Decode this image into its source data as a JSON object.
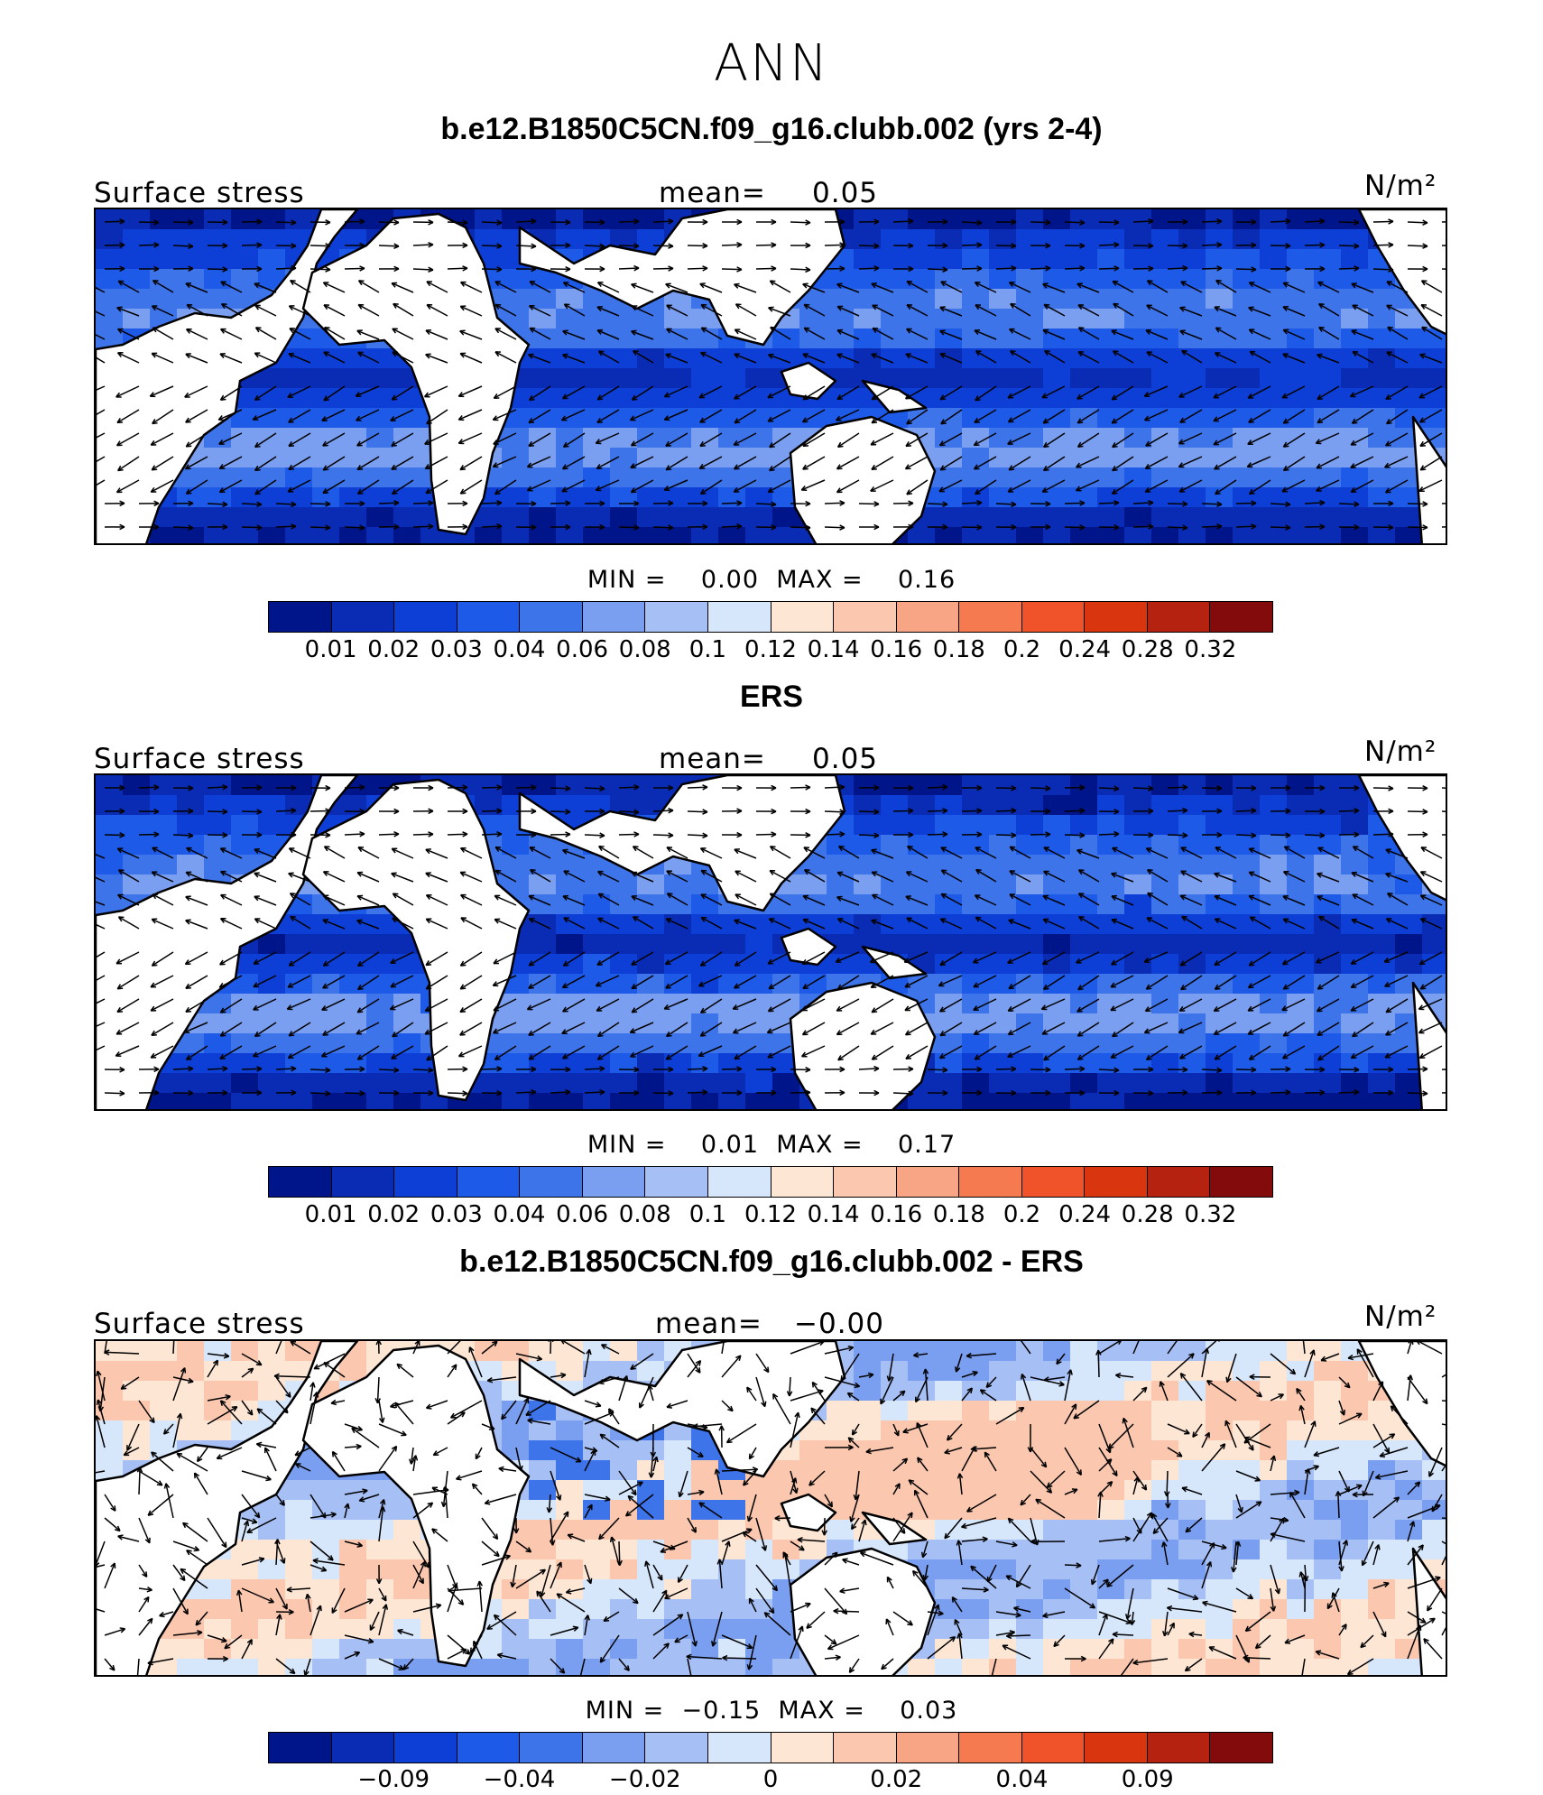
{
  "title": "ANN",
  "panels": [
    {
      "title": "b.e12.B1850C5CN.f09_g16.clubb.002 (yrs 2-4)",
      "variable": "Surface stress",
      "mean_label": "mean=",
      "mean_value": "0.05",
      "units": "N/m²",
      "min_label": "MIN =",
      "min_value": "0.00",
      "max_label": "MAX =",
      "max_value": "0.16",
      "colorbar_ticks": [
        "0.01",
        "0.02",
        "0.03",
        "0.04",
        "0.06",
        "0.08",
        "0.1",
        "0.12",
        "0.14",
        "0.16",
        "0.18",
        "0.2",
        "0.24",
        "0.28",
        "0.32"
      ],
      "palette": "abs"
    },
    {
      "title": "ERS",
      "variable": "Surface stress",
      "mean_label": "mean=",
      "mean_value": "0.05",
      "units": "N/m²",
      "min_label": "MIN =",
      "min_value": "0.01",
      "max_label": "MAX =",
      "max_value": "0.17",
      "colorbar_ticks": [
        "0.01",
        "0.02",
        "0.03",
        "0.04",
        "0.06",
        "0.08",
        "0.1",
        "0.12",
        "0.14",
        "0.16",
        "0.18",
        "0.2",
        "0.24",
        "0.28",
        "0.32"
      ],
      "palette": "abs"
    },
    {
      "title": "b.e12.B1850C5CN.f09_g16.clubb.002 - ERS",
      "variable": "Surface stress",
      "mean_label": "mean=",
      "mean_value": "−0.00",
      "units": "N/m²",
      "min_label": "MIN =",
      "min_value": "−0.15",
      "max_label": "MAX =",
      "max_value": "0.03",
      "colorbar_ticks": [
        "−0.09",
        "−0.04",
        "−0.02",
        "0",
        "0.02",
        "0.04",
        "0.09"
      ],
      "palette": "diff"
    }
  ],
  "colors": {
    "colorbar": [
      "#00158a",
      "#0a2cb5",
      "#0d3fd6",
      "#1d5ae8",
      "#3d74ea",
      "#7a9ff0",
      "#a6c0f6",
      "#d6e6fb",
      "#fde6d4",
      "#fbc7ae",
      "#f8a585",
      "#f57a50",
      "#f0532a",
      "#d9350f",
      "#b52210",
      "#840b0b"
    ],
    "land": "#ffffff",
    "coast": "#000000",
    "arrow": "#000000"
  },
  "chart_data": [
    {
      "type": "heatmap",
      "title": "b.e12.B1850C5CN.f09_g16.clubb.002 (yrs 2-4)",
      "field": "Surface stress",
      "units": "N/m²",
      "mean": 0.05,
      "min": 0.0,
      "max": 0.16,
      "contour_levels": [
        0.01,
        0.02,
        0.03,
        0.04,
        0.06,
        0.08,
        0.1,
        0.12,
        0.14,
        0.16,
        0.18,
        0.2,
        0.24,
        0.28,
        0.32
      ],
      "overlay": "wind stress vectors"
    },
    {
      "type": "heatmap",
      "title": "ERS",
      "field": "Surface stress",
      "units": "N/m²",
      "mean": 0.05,
      "min": 0.01,
      "max": 0.17,
      "contour_levels": [
        0.01,
        0.02,
        0.03,
        0.04,
        0.06,
        0.08,
        0.1,
        0.12,
        0.14,
        0.16,
        0.18,
        0.2,
        0.24,
        0.28,
        0.32
      ],
      "overlay": "wind stress vectors"
    },
    {
      "type": "heatmap",
      "title": "b.e12.B1850C5CN.f09_g16.clubb.002 - ERS",
      "field": "Surface stress",
      "units": "N/m²",
      "mean": -0.0,
      "min": -0.15,
      "max": 0.03,
      "contour_levels": [
        -0.09,
        -0.04,
        -0.02,
        0,
        0.02,
        0.04,
        0.09
      ],
      "overlay": "wind stress difference vectors"
    }
  ]
}
